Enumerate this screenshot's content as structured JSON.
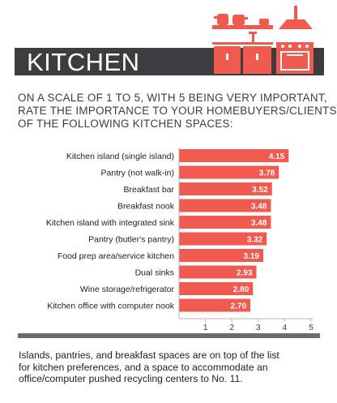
{
  "header": {
    "title": "KITCHEN"
  },
  "question_lines": [
    "ON A SCALE OF 1 TO 5, WITH 5 BEING VERY IMPORTANT,",
    "RATE THE IMPORTANCE TO YOUR HOMEBUYERS/CLIENTS",
    "OF THE FOLLOWING KITCHEN SPACES:"
  ],
  "summary_lines": [
    "Islands, pantries, and breakfast spaces are on top of the list",
    "for kitchen preferences, and a space to accommodate an",
    "office/computer pushed recycling centers to No. 11."
  ],
  "colors": {
    "bar": "#f05a4f",
    "header_band": "#3d3d3f",
    "axis": "#b5b5b5",
    "text": "#3d3d3f"
  },
  "chart_data": {
    "type": "bar",
    "orientation": "horizontal",
    "categories": [
      "Kitchen island (single island)",
      "Pantry (not walk-in)",
      "Breakfast bar",
      "Breakfast nook",
      "Kitchen island with integrated sink",
      "Pantry (butler's pantry)",
      "Food prep area/service kitchen",
      "Dual sinks",
      "Wine storage/refrigerator",
      "Kitchen office with computer nook"
    ],
    "values": [
      4.15,
      3.78,
      3.52,
      3.48,
      3.48,
      3.32,
      3.19,
      2.93,
      2.8,
      2.7
    ],
    "value_labels": [
      "4.15",
      "3.78",
      "3.52",
      "3.48",
      "3.48",
      "3.32",
      "3.19",
      "2.93",
      "2.80",
      "2.70"
    ],
    "x_ticks": [
      1,
      2,
      3,
      4,
      5
    ],
    "x_tick_labels": [
      "1",
      "2",
      "3",
      "4",
      "5"
    ],
    "xlim": [
      0,
      5
    ],
    "grid": false,
    "legend": false
  }
}
